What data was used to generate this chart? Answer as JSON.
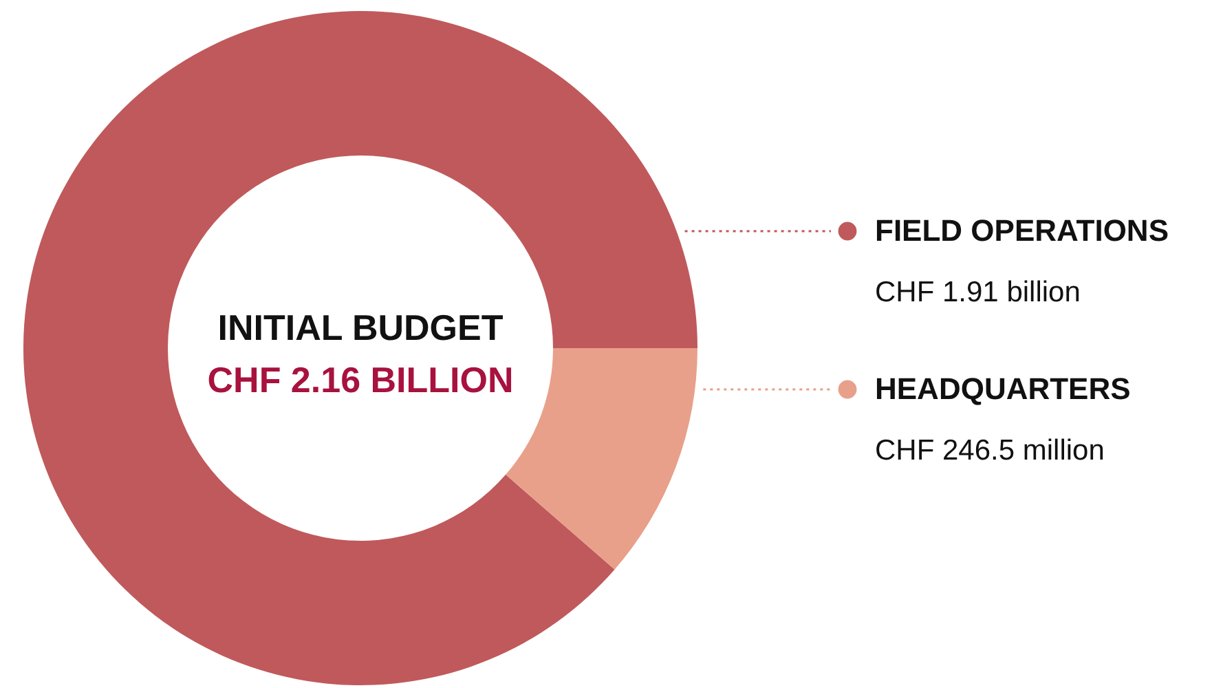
{
  "chart_data": {
    "type": "donut",
    "title": "INITIAL BUDGET",
    "subtitle": "CHF 2.16 BILLION",
    "categories": [
      "FIELD OPERATIONS",
      "HEADQUARTERS"
    ],
    "values": [
      88.6,
      11.4
    ],
    "value_labels": [
      "CHF 1.91 billion",
      "CHF 246.5 million"
    ],
    "colors": [
      "#c0595b",
      "#e8a08a"
    ],
    "legend": "right"
  }
}
